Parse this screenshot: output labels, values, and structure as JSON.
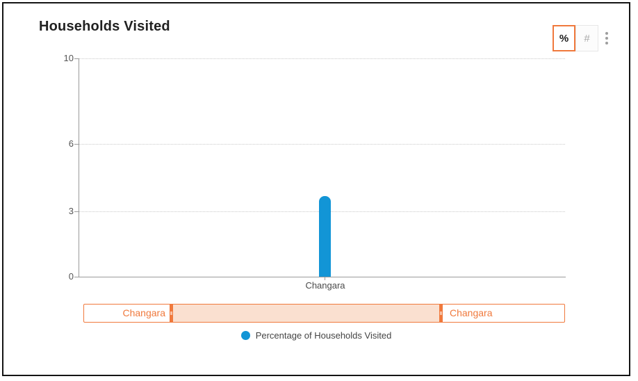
{
  "window": {
    "title": "Households Visited"
  },
  "toolbar": {
    "percent_label": "%",
    "hash_label": "#",
    "menu_icon": "kebab-vertical"
  },
  "chart_data": {
    "type": "bar",
    "title": "Households Visited",
    "categories": [
      "Changara"
    ],
    "series": [
      {
        "name": "Percentage of Households Visited",
        "values": [
          3.7
        ]
      }
    ],
    "xlabel": "",
    "ylabel": "",
    "ylim": [
      0,
      10
    ],
    "yticks": [
      0,
      3,
      6,
      10
    ],
    "grid": "horizontal-dotted",
    "legend_position": "bottom-center",
    "bar_color": "#1295D6"
  },
  "range_slider": {
    "left_label": "Changara",
    "right_label": "Changara",
    "accent_color": "#F0793C",
    "fill_color": "#FAE0D0"
  },
  "legend": {
    "label": "Percentage of Households Visited",
    "dot_color": "#1295D6"
  }
}
